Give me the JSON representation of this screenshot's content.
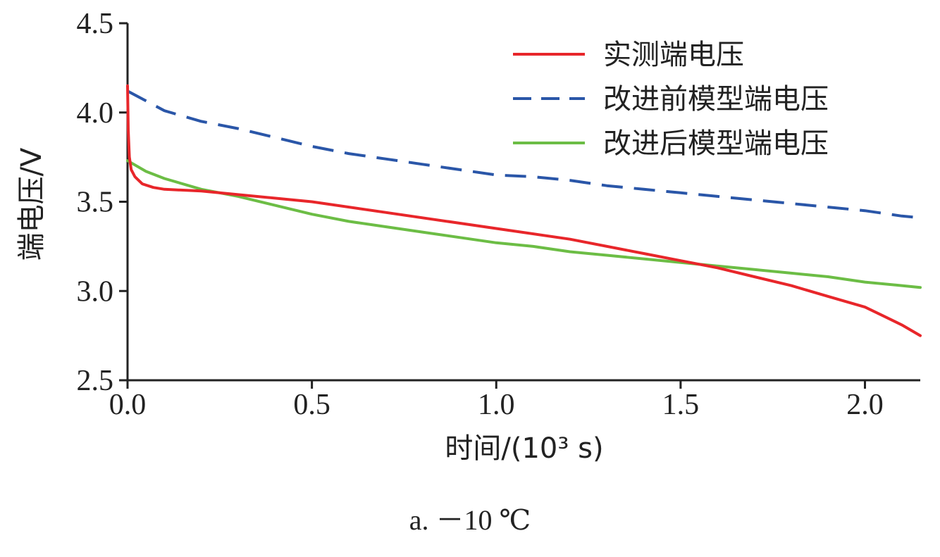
{
  "chart_data": {
    "type": "line",
    "title": "",
    "caption": "a. －10 ℃",
    "xlabel": "时间/(10³ s)",
    "ylabel": "端电压/V",
    "xlim": [
      0,
      2.15
    ],
    "ylim": [
      2.5,
      4.5
    ],
    "xticks": [
      0.0,
      0.5,
      1.0,
      1.5,
      2.0
    ],
    "xtick_labels": [
      "0.0",
      "0.5",
      "1.0",
      "1.5",
      "2.0"
    ],
    "yticks": [
      2.5,
      3.0,
      3.5,
      4.0,
      4.5
    ],
    "ytick_labels": [
      "2.5",
      "3.0",
      "3.5",
      "4.0",
      "4.5"
    ],
    "grid": false,
    "legend_position": "top-right",
    "series": [
      {
        "name": "实测端电压",
        "color": "#e8262a",
        "style": "solid",
        "x": [
          0.0,
          0.002,
          0.005,
          0.01,
          0.02,
          0.04,
          0.07,
          0.1,
          0.2,
          0.3,
          0.5,
          0.7,
          0.9,
          1.0,
          1.2,
          1.4,
          1.5,
          1.6,
          1.7,
          1.8,
          1.9,
          2.0,
          2.05,
          2.1,
          2.15
        ],
        "y": [
          4.15,
          3.9,
          3.75,
          3.68,
          3.64,
          3.6,
          3.58,
          3.57,
          3.56,
          3.54,
          3.5,
          3.44,
          3.38,
          3.35,
          3.29,
          3.21,
          3.17,
          3.13,
          3.08,
          3.03,
          2.97,
          2.91,
          2.86,
          2.81,
          2.75
        ]
      },
      {
        "name": "改进前模型端电压",
        "color": "#2a56a8",
        "style": "dashed",
        "x": [
          0.0,
          0.1,
          0.2,
          0.3,
          0.4,
          0.5,
          0.6,
          0.7,
          0.8,
          0.9,
          1.0,
          1.1,
          1.2,
          1.3,
          1.4,
          1.5,
          1.6,
          1.7,
          1.8,
          1.9,
          2.0,
          2.1,
          2.15
        ],
        "y": [
          4.12,
          4.01,
          3.95,
          3.91,
          3.86,
          3.81,
          3.77,
          3.74,
          3.71,
          3.68,
          3.65,
          3.64,
          3.62,
          3.59,
          3.57,
          3.55,
          3.53,
          3.51,
          3.49,
          3.47,
          3.45,
          3.42,
          3.41
        ]
      },
      {
        "name": "改进后模型端电压",
        "color": "#6cbd45",
        "style": "solid",
        "x": [
          0.0,
          0.05,
          0.1,
          0.2,
          0.3,
          0.4,
          0.5,
          0.6,
          0.7,
          0.8,
          0.9,
          1.0,
          1.1,
          1.2,
          1.3,
          1.4,
          1.5,
          1.6,
          1.7,
          1.8,
          1.9,
          2.0,
          2.1,
          2.15
        ],
        "y": [
          3.73,
          3.67,
          3.63,
          3.57,
          3.53,
          3.48,
          3.43,
          3.39,
          3.36,
          3.33,
          3.3,
          3.27,
          3.25,
          3.22,
          3.2,
          3.18,
          3.16,
          3.14,
          3.12,
          3.1,
          3.08,
          3.05,
          3.03,
          3.02
        ]
      }
    ]
  }
}
